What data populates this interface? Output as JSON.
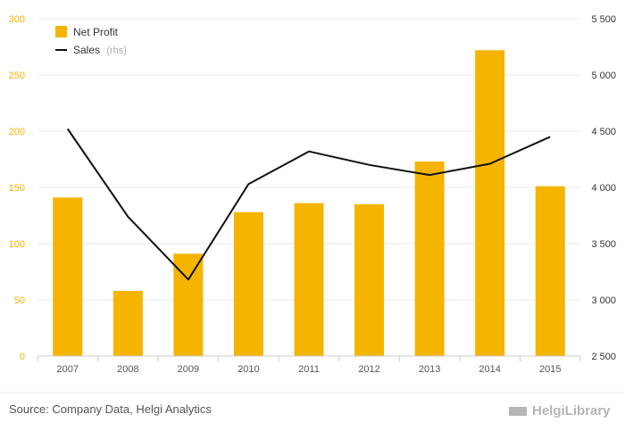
{
  "chart_data": {
    "type": "bar",
    "categories": [
      "2007",
      "2008",
      "2009",
      "2010",
      "2011",
      "2012",
      "2013",
      "2014",
      "2015"
    ],
    "series": [
      {
        "name": "Net Profit",
        "type": "bar",
        "axis": "left",
        "values": [
          141,
          58,
          91,
          128,
          136,
          135,
          173,
          272,
          151
        ]
      },
      {
        "name": "Sales",
        "type": "line",
        "axis": "right",
        "values": [
          4520,
          3740,
          3180,
          4030,
          4320,
          4200,
          4110,
          4210,
          4450
        ]
      }
    ],
    "ylim": [
      0,
      300
    ],
    "y_ticks": [
      0,
      50,
      100,
      150,
      200,
      250,
      300
    ],
    "y_tick_labels": [
      "0",
      "50",
      "100",
      "150",
      "200",
      "250",
      "300"
    ],
    "y2lim": [
      2500,
      5500
    ],
    "y2_ticks": [
      2500,
      3000,
      3500,
      4000,
      4500,
      5000,
      5500
    ],
    "y2_tick_labels": [
      "2 500",
      "3 000",
      "3 500",
      "4 000",
      "4 500",
      "5 000",
      "5 500"
    ],
    "legend": {
      "position": "top-left",
      "items": [
        {
          "label": "Net Profit",
          "suffix": "",
          "marker": "square"
        },
        {
          "label": "Sales",
          "suffix": "(rhs)",
          "marker": "line"
        }
      ]
    },
    "grid": true,
    "colors": {
      "bar": "#f4b400",
      "line": "#111111",
      "left_axis_labels": "#f4b400",
      "grid": "#e8e8e8"
    }
  },
  "source": "Source: Company Data, Helgi Analytics",
  "brand": "HelgiLibrary"
}
